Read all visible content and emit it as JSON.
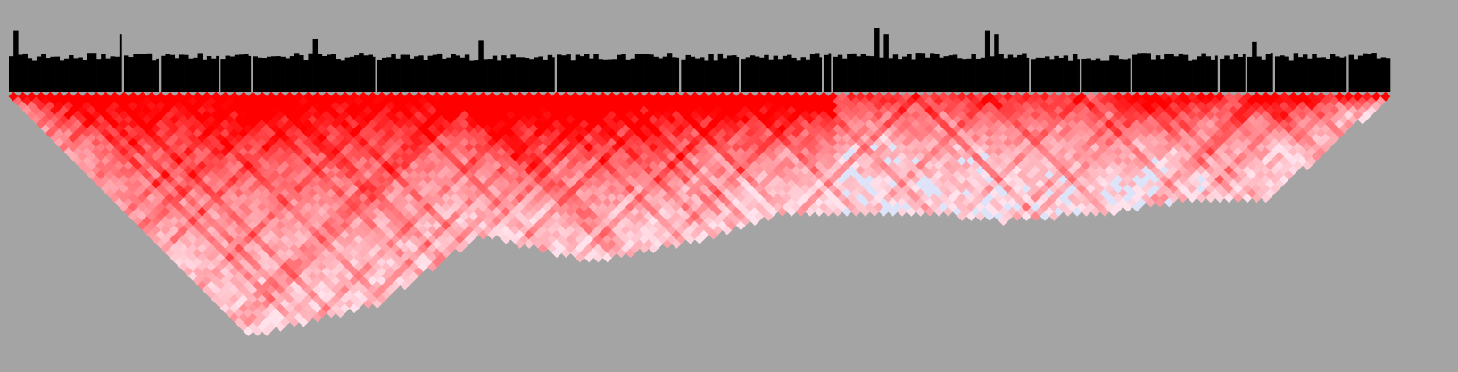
{
  "chart_data": {
    "type": "heatmap",
    "description_kind": "triangular pairwise interaction map with per-bin bar track",
    "colors": {
      "background": "#a4a4a4",
      "bars": "#000000",
      "high": "#ff0000",
      "low": "#ffe2ec",
      "cool": "#dde3f8"
    },
    "bar_track": {
      "n_bins": 300,
      "baseline_value": 0.55,
      "peaks": [
        {
          "bin": 1,
          "value": 0.95
        },
        {
          "bin": 24,
          "value": 0.9
        },
        {
          "bin": 66,
          "value": 0.82
        },
        {
          "bin": 102,
          "value": 0.8
        },
        {
          "bin": 188,
          "value": 1.0
        },
        {
          "bin": 190,
          "value": 0.9
        },
        {
          "bin": 212,
          "value": 0.95
        },
        {
          "bin": 214,
          "value": 0.9
        },
        {
          "bin": 270,
          "value": 0.78
        }
      ],
      "gaps_at_bins": [
        24,
        32,
        45,
        52,
        79,
        118,
        145,
        158,
        176,
        178,
        221,
        232,
        243,
        262,
        268,
        274,
        290
      ]
    },
    "heatmap": {
      "n_bins": 300,
      "depth_profile_bins": [
        {
          "bin": 0,
          "depth": 0
        },
        {
          "bin": 27,
          "depth": 90
        },
        {
          "bin": 51,
          "depth": 105
        },
        {
          "bin": 80,
          "depth": 90
        },
        {
          "bin": 103,
          "depth": 60
        },
        {
          "bin": 126,
          "depth": 72
        },
        {
          "bin": 150,
          "depth": 62
        },
        {
          "bin": 168,
          "depth": 50
        },
        {
          "bin": 196,
          "depth": 50
        },
        {
          "bin": 216,
          "depth": 54
        },
        {
          "bin": 240,
          "depth": 50
        },
        {
          "bin": 258,
          "depth": 44
        },
        {
          "bin": 273,
          "depth": 45
        },
        {
          "bin": 300,
          "depth": 0
        }
      ],
      "intensity_regions": [
        {
          "from_bin": 0,
          "to_bin": 100,
          "near_diag": 0.95,
          "far": 0.15
        },
        {
          "from_bin": 100,
          "to_bin": 180,
          "near_diag": 0.98,
          "far": 0.35
        },
        {
          "from_bin": 180,
          "to_bin": 240,
          "near_diag": 0.75,
          "far": 0.05
        },
        {
          "from_bin": 240,
          "to_bin": 300,
          "near_diag": 0.85,
          "far": 0.1
        }
      ]
    },
    "title": "",
    "xlabel": "",
    "ylabel": ""
  }
}
